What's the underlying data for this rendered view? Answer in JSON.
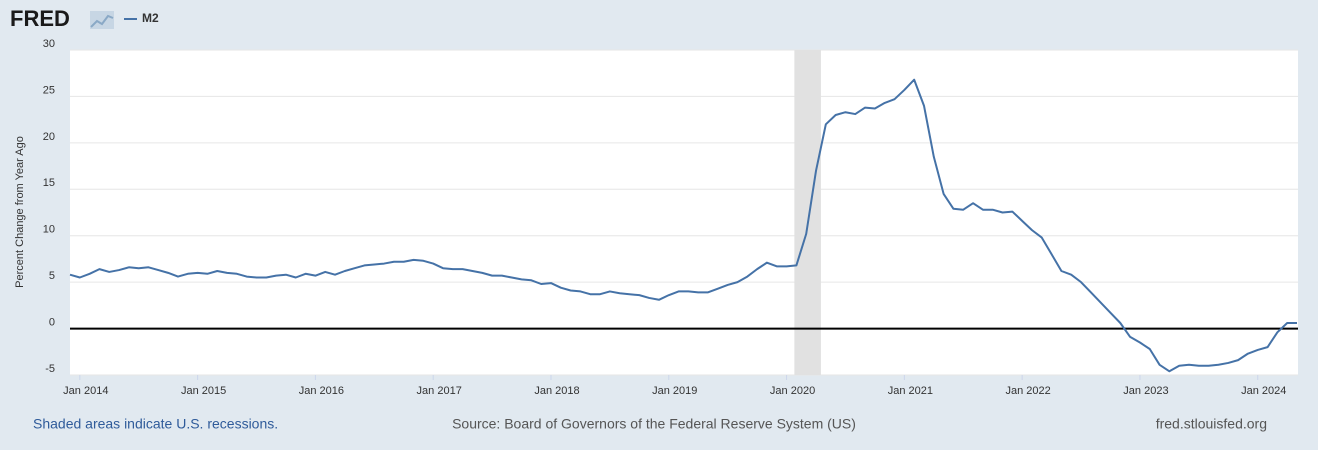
{
  "header": {
    "logo": "FRED"
  },
  "footer": {
    "note": "Shaded areas indicate U.S. recessions.",
    "source": "Source: Board of Governors of the Federal Reserve System (US)",
    "site": "fred.stlouisfed.org"
  },
  "chart_data": {
    "type": "line",
    "ylabel": "Percent Change from Year Ago",
    "x": [
      "2013-12",
      "2014-01",
      "2014-02",
      "2014-03",
      "2014-04",
      "2014-05",
      "2014-06",
      "2014-07",
      "2014-08",
      "2014-09",
      "2014-10",
      "2014-11",
      "2014-12",
      "2015-01",
      "2015-02",
      "2015-03",
      "2015-04",
      "2015-05",
      "2015-06",
      "2015-07",
      "2015-08",
      "2015-09",
      "2015-10",
      "2015-11",
      "2015-12",
      "2016-01",
      "2016-02",
      "2016-03",
      "2016-04",
      "2016-05",
      "2016-06",
      "2016-07",
      "2016-08",
      "2016-09",
      "2016-10",
      "2016-11",
      "2016-12",
      "2017-01",
      "2017-02",
      "2017-03",
      "2017-04",
      "2017-05",
      "2017-06",
      "2017-07",
      "2017-08",
      "2017-09",
      "2017-10",
      "2017-11",
      "2017-12",
      "2018-01",
      "2018-02",
      "2018-03",
      "2018-04",
      "2018-05",
      "2018-06",
      "2018-07",
      "2018-08",
      "2018-09",
      "2018-10",
      "2018-11",
      "2018-12",
      "2019-01",
      "2019-02",
      "2019-03",
      "2019-04",
      "2019-05",
      "2019-06",
      "2019-07",
      "2019-08",
      "2019-09",
      "2019-10",
      "2019-11",
      "2019-12",
      "2020-01",
      "2020-02",
      "2020-03",
      "2020-04",
      "2020-05",
      "2020-06",
      "2020-07",
      "2020-08",
      "2020-09",
      "2020-10",
      "2020-11",
      "2020-12",
      "2021-01",
      "2021-02",
      "2021-03",
      "2021-04",
      "2021-05",
      "2021-06",
      "2021-07",
      "2021-08",
      "2021-09",
      "2021-10",
      "2021-11",
      "2021-12",
      "2022-01",
      "2022-02",
      "2022-03",
      "2022-04",
      "2022-05",
      "2022-06",
      "2022-07",
      "2022-08",
      "2022-09",
      "2022-10",
      "2022-11",
      "2022-12",
      "2023-01",
      "2023-02",
      "2023-03",
      "2023-04",
      "2023-05",
      "2023-06",
      "2023-07",
      "2023-08",
      "2023-09",
      "2023-10",
      "2023-11",
      "2023-12",
      "2024-01",
      "2024-02",
      "2024-03",
      "2024-04",
      "2024-05"
    ],
    "series": [
      {
        "name": "M2",
        "color": "#4572a7",
        "values": [
          5.8,
          5.5,
          5.9,
          6.4,
          6.1,
          6.3,
          6.6,
          6.5,
          6.6,
          6.3,
          6.0,
          5.6,
          5.9,
          6.0,
          5.9,
          6.2,
          6.0,
          5.9,
          5.6,
          5.5,
          5.5,
          5.7,
          5.8,
          5.5,
          5.9,
          5.7,
          6.1,
          5.8,
          6.2,
          6.5,
          6.8,
          6.9,
          7.0,
          7.2,
          7.2,
          7.4,
          7.3,
          7.0,
          6.5,
          6.4,
          6.4,
          6.2,
          6.0,
          5.7,
          5.7,
          5.5,
          5.3,
          5.2,
          4.8,
          4.9,
          4.4,
          4.1,
          4.0,
          3.7,
          3.7,
          4.0,
          3.8,
          3.7,
          3.6,
          3.3,
          3.1,
          3.6,
          4.0,
          4.0,
          3.9,
          3.9,
          4.3,
          4.7,
          5.0,
          5.6,
          6.4,
          7.1,
          6.7,
          6.7,
          6.8,
          10.2,
          17.0,
          22.0,
          23.0,
          23.3,
          23.1,
          23.8,
          23.7,
          24.3,
          24.7,
          25.7,
          26.8,
          24.0,
          18.5,
          14.5,
          12.9,
          12.8,
          13.5,
          12.8,
          12.8,
          12.5,
          12.6,
          11.6,
          10.6,
          9.8,
          8.0,
          6.2,
          5.8,
          5.0,
          3.9,
          2.8,
          1.7,
          0.6,
          -0.9,
          -1.5,
          -2.2,
          -3.9,
          -4.6,
          -4.0,
          -3.9,
          -4.0,
          -4.0,
          -3.9,
          -3.7,
          -3.4,
          -2.7,
          -2.3,
          -2.0,
          -0.4,
          0.6,
          0.6
        ]
      }
    ],
    "recessions": [
      {
        "start": "2020-02",
        "end": "2020-04"
      }
    ],
    "xlim": [
      "2013-12",
      "2024-05"
    ],
    "xticks": [
      {
        "value": "2014-01",
        "label": "Jan 2014"
      },
      {
        "value": "2015-01",
        "label": "Jan 2015"
      },
      {
        "value": "2016-01",
        "label": "Jan 2016"
      },
      {
        "value": "2017-01",
        "label": "Jan 2017"
      },
      {
        "value": "2018-01",
        "label": "Jan 2018"
      },
      {
        "value": "2019-01",
        "label": "Jan 2019"
      },
      {
        "value": "2020-01",
        "label": "Jan 2020"
      },
      {
        "value": "2021-01",
        "label": "Jan 2021"
      },
      {
        "value": "2022-01",
        "label": "Jan 2022"
      },
      {
        "value": "2023-01",
        "label": "Jan 2023"
      },
      {
        "value": "2024-01",
        "label": "Jan 2024"
      }
    ],
    "ylim": [
      -5,
      30
    ],
    "yticks": [
      -5,
      0,
      5,
      10,
      15,
      20,
      25,
      30
    ],
    "grid": true
  }
}
